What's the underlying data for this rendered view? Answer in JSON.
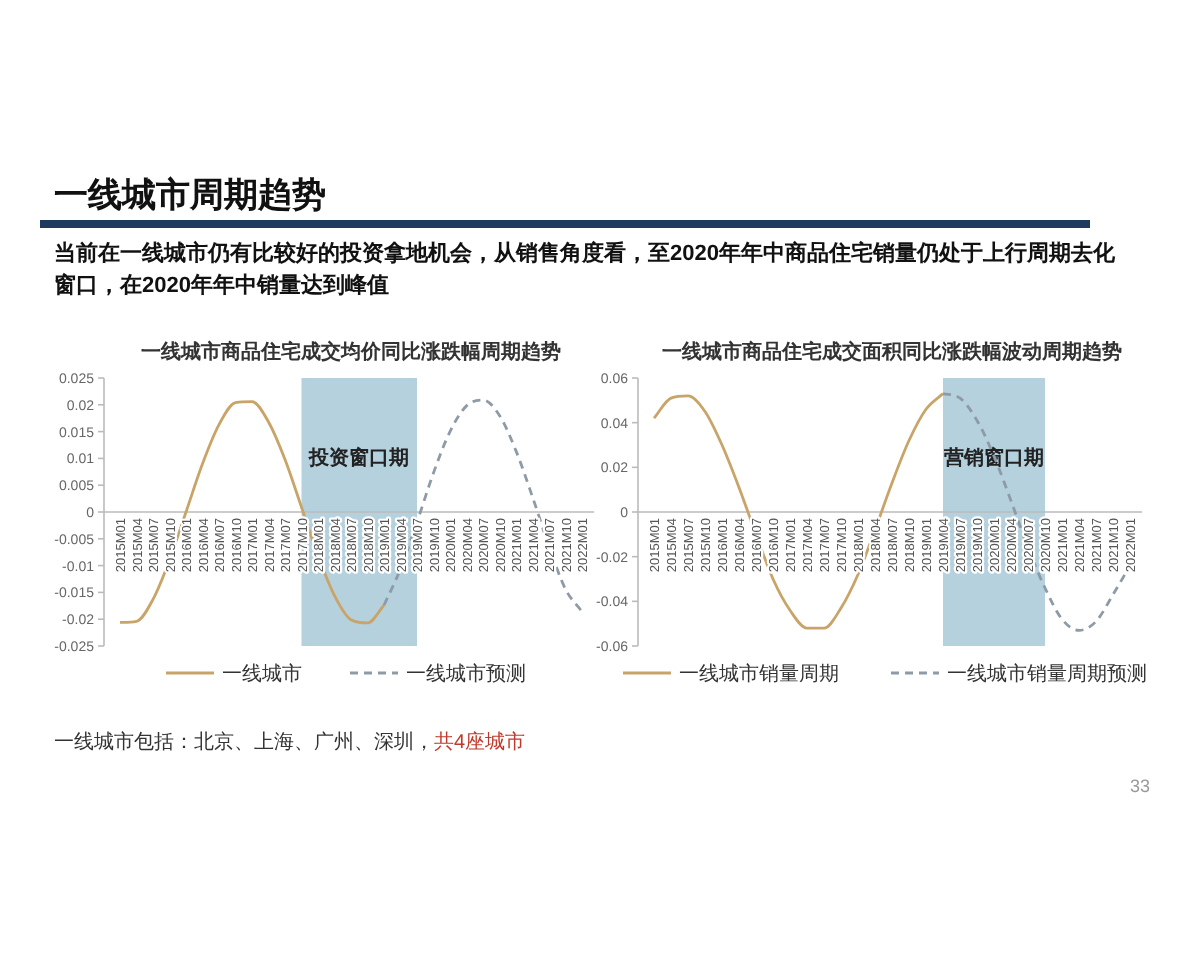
{
  "chart_data": [
    {
      "type": "line",
      "title": "一线城市商品住宅成交均价同比涨跌幅周期趋势",
      "categories": [
        "2015M01",
        "2015M04",
        "2015M07",
        "2015M10",
        "2016M01",
        "2016M04",
        "2016M07",
        "2016M10",
        "2017M01",
        "2017M04",
        "2017M07",
        "2017M10",
        "2018M01",
        "2018M04",
        "2018M07",
        "2018M10",
        "2019M01",
        "2019M04",
        "2019M07",
        "2019M10",
        "2020M01",
        "2020M04",
        "2020M07",
        "2020M10",
        "2021M01",
        "2021M04",
        "2021M07",
        "2021M10",
        "2022M01"
      ],
      "series": [
        {
          "name": "一线城市",
          "color": "#c9a468",
          "values": [
            -0.0206,
            -0.0204,
            -0.0163,
            -0.009,
            0,
            0.009,
            0.0163,
            0.0204,
            0.0206,
            0.0168,
            0.0098,
            0.0009,
            -0.0081,
            -0.0156,
            -0.0201,
            -0.0207,
            -0.0174,
            null,
            null,
            null,
            null,
            null,
            null,
            null,
            null,
            null,
            null,
            null,
            null
          ]
        },
        {
          "name": "一线城市预测",
          "color": "#8e9ba7",
          "line_style": "dashed",
          "values": [
            null,
            null,
            null,
            null,
            null,
            null,
            null,
            null,
            null,
            null,
            null,
            null,
            null,
            null,
            null,
            null,
            -0.0174,
            -0.0106,
            -0.0019,
            0.0073,
            0.015,
            0.0198,
            0.0209,
            0.018,
            0.0114,
            0.0028,
            -0.0064,
            -0.0144,
            -0.0186
          ]
        }
      ],
      "ylim": [
        -0.025,
        0.025
      ],
      "yticks": [
        0.025,
        0.02,
        0.015,
        0.01,
        0.005,
        0,
        -0.005,
        -0.01,
        -0.015,
        -0.02,
        -0.025
      ],
      "bands": [
        {
          "axis": "x",
          "from": "2017M10",
          "to": "2019M07",
          "label": "投资窗口期",
          "color": "#a8c9d8"
        }
      ],
      "legend": "bottom",
      "grid": false,
      "annotations": [
        "一线城市周期趋势",
        "当前在一线城市仍有比较好的投资拿地机会，从销售角度看，至2020年年中商品住宅销量仍处于上行周期去化窗口，在2020年年中销量达到峰值",
        "一线城市包括：北京、上海、广州、深圳，",
        "共4座城市",
        "33"
      ]
    },
    {
      "type": "line",
      "title": "一线城市商品住宅成交面积同比涨跌幅波动周期趋势",
      "categories": [
        "2015M01",
        "2015M04",
        "2015M07",
        "2015M10",
        "2016M01",
        "2016M04",
        "2016M07",
        "2016M10",
        "2017M01",
        "2017M04",
        "2017M07",
        "2017M10",
        "2018M01",
        "2018M04",
        "2018M07",
        "2018M10",
        "2019M01",
        "2019M04",
        "2019M07",
        "2019M10",
        "2020M01",
        "2020M04",
        "2020M07",
        "2020M10",
        "2021M01",
        "2021M04",
        "2021M07",
        "2021M10",
        "2022M01"
      ],
      "series": [
        {
          "name": "一线城市销量周期",
          "color": "#c9a468",
          "values": [
            0.042,
            0.051,
            0.052,
            0.045,
            0.03,
            0.011,
            -0.01,
            -0.03,
            -0.044,
            -0.052,
            -0.052,
            -0.043,
            -0.028,
            -0.008,
            0.013,
            0.032,
            0.046,
            0.053,
            null,
            null,
            null,
            null,
            null,
            null,
            null,
            null,
            null,
            null,
            null
          ]
        },
        {
          "name": "一线城市销量周期预测",
          "color": "#8e9ba7",
          "line_style": "dashed",
          "values": [
            null,
            null,
            null,
            null,
            null,
            null,
            null,
            null,
            null,
            null,
            null,
            null,
            null,
            null,
            null,
            null,
            null,
            0.053,
            0.051,
            0.041,
            0.025,
            0.005,
            -0.016,
            -0.034,
            -0.048,
            -0.053,
            -0.049,
            -0.037,
            -0.024
          ]
        }
      ],
      "ylim": [
        -0.06,
        0.06
      ],
      "yticks": [
        0.06,
        0.04,
        0.02,
        0,
        -0.02,
        -0.04,
        -0.06
      ],
      "bands": [
        {
          "axis": "x",
          "from": "2019M04",
          "to": "2020M10",
          "label": "营销窗口期",
          "color": "#a8c9d8"
        }
      ],
      "legend": "bottom",
      "grid": false
    }
  ]
}
